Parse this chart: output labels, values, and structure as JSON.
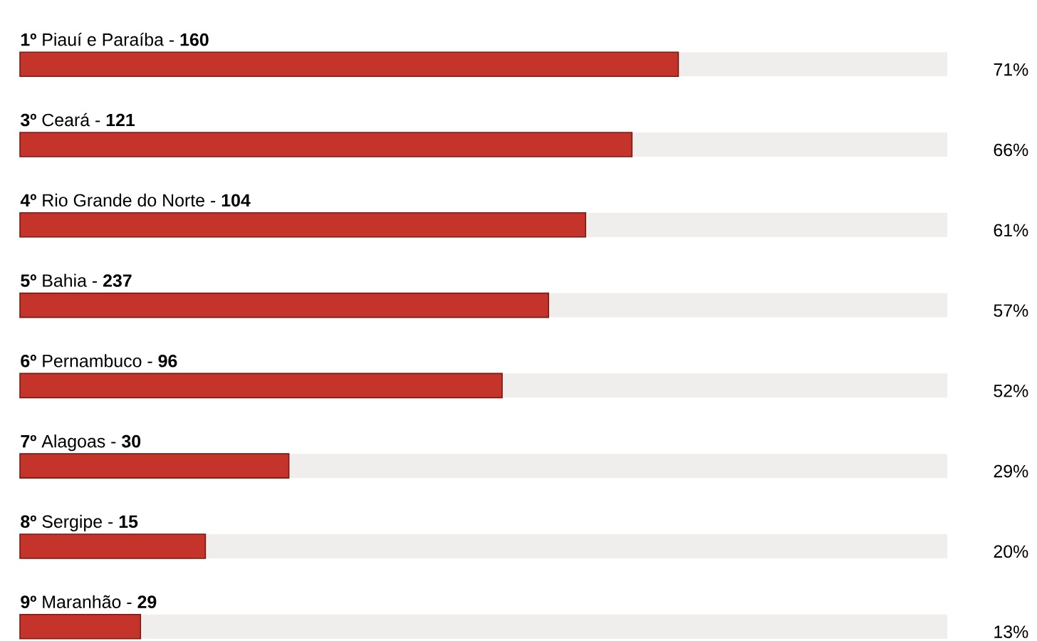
{
  "chart_data": {
    "type": "bar",
    "orientation": "horizontal",
    "categories": [
      "**1º** Piauí e Paraíba - **160**",
      "**3º** Ceará - **121**",
      "**4º** Rio Grande do Norte - **104**",
      "**5º** Bahia - **237**",
      "**6º** Pernambuco - **96**",
      "**7º** Alagoas - **30**",
      "**8º** Sergipe - **15**",
      "**9º** Maranhão - **29**"
    ],
    "values": [
      71,
      66,
      61,
      57,
      52,
      29,
      20,
      13
    ],
    "value_labels": [
      "71%",
      "66%",
      "61%",
      "57%",
      "52%",
      "29%",
      "20%",
      "13%"
    ],
    "color": "#c4342a",
    "xlim": [
      0,
      100
    ]
  }
}
